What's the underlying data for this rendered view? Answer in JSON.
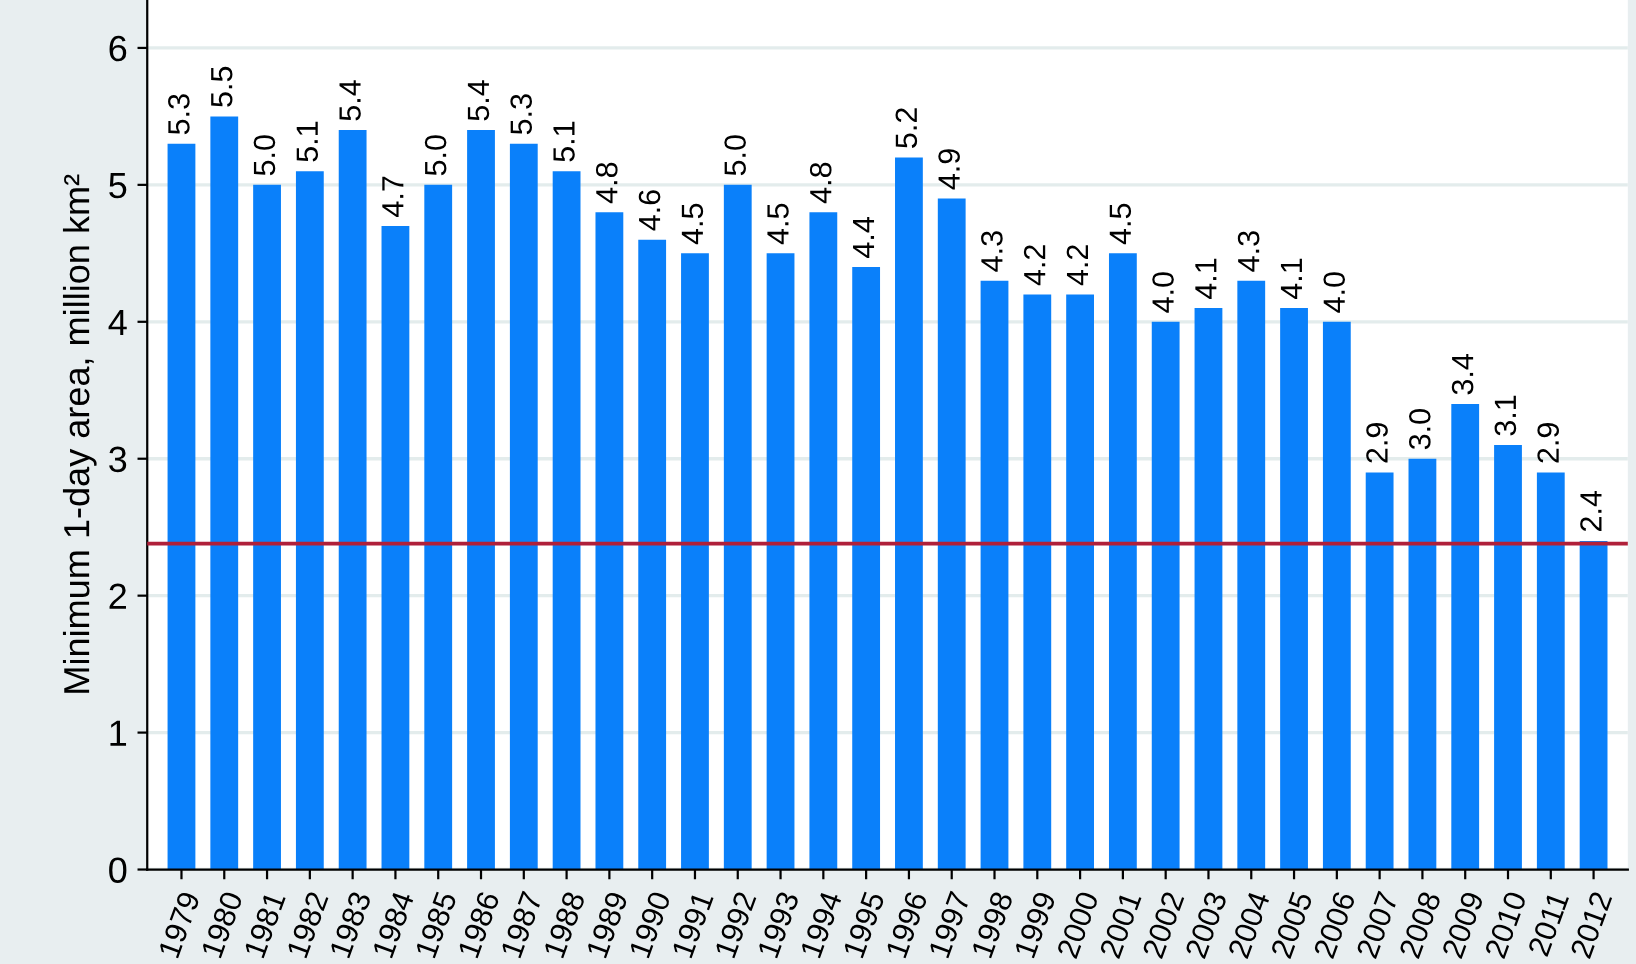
{
  "chart_data": {
    "type": "bar",
    "ylabel": "Minimum 1-day area, million km²",
    "categories": [
      "1979",
      "1980",
      "1981",
      "1982",
      "1983",
      "1984",
      "1985",
      "1986",
      "1987",
      "1988",
      "1989",
      "1990",
      "1991",
      "1992",
      "1993",
      "1994",
      "1995",
      "1996",
      "1997",
      "1998",
      "1999",
      "2000",
      "2001",
      "2002",
      "2003",
      "2004",
      "2005",
      "2006",
      "2007",
      "2008",
      "2009",
      "2010",
      "2011",
      "2012"
    ],
    "values": [
      5.3,
      5.5,
      5.0,
      5.1,
      5.4,
      4.7,
      5.0,
      5.4,
      5.3,
      5.1,
      4.8,
      4.6,
      4.5,
      5.0,
      4.5,
      4.8,
      4.4,
      5.2,
      4.9,
      4.3,
      4.2,
      4.2,
      4.5,
      4.0,
      4.1,
      4.3,
      4.1,
      4.0,
      2.9,
      3.0,
      3.4,
      3.1,
      2.9,
      2.4
    ],
    "value_labels": [
      "5.3",
      "5.5",
      "5.0",
      "5.1",
      "5.4",
      "4.7",
      "5.0",
      "5.4",
      "5.3",
      "5.1",
      "4.8",
      "4.6",
      "4.5",
      "5.0",
      "4.5",
      "4.8",
      "4.4",
      "5.2",
      "4.9",
      "4.3",
      "4.2",
      "4.2",
      "4.5",
      "4.0",
      "4.1",
      "4.3",
      "4.1",
      "4.0",
      "2.9",
      "3.0",
      "3.4",
      "3.1",
      "2.9",
      "2.4"
    ],
    "color": "#0a80fa",
    "ref_lines": [
      {
        "axis": "y",
        "value": 2.38,
        "color": "#b0203a"
      }
    ],
    "ylim": [
      0,
      6.35
    ],
    "yticks": [
      0,
      1,
      2,
      3,
      4,
      5,
      6
    ],
    "grid": "y"
  }
}
